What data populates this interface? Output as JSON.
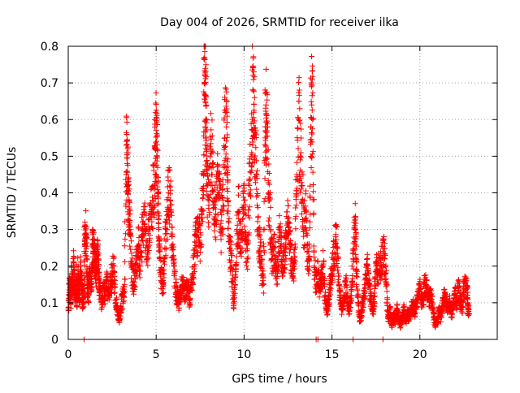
{
  "chart_data": {
    "type": "scatter",
    "title": "Day 004 of 2026, SRMTID for receiver ilka",
    "xlabel": "GPS time / hours",
    "ylabel": "SRMTID / TECUs",
    "xlim": [
      0,
      24.4
    ],
    "ylim": [
      0,
      0.8
    ],
    "xticks": [
      0,
      5,
      10,
      15,
      20
    ],
    "xtick_labels": [
      "0",
      "5",
      "10",
      "15",
      "20"
    ],
    "yticks": [
      0,
      0.1,
      0.2,
      0.3,
      0.4,
      0.5,
      0.6,
      0.7,
      0.8
    ],
    "ytick_labels": [
      "0",
      "0.1",
      "0.2",
      "0.3",
      "0.4",
      "0.5",
      "0.6",
      "0.7",
      "0.8"
    ],
    "grid": true,
    "marker": "+",
    "marker_color": "#ff0000",
    "series": [
      {
        "name": "SRMTID",
        "points": [
          [
            0.0,
            0.08
          ],
          [
            0.05,
            0.12
          ],
          [
            0.1,
            0.16
          ],
          [
            0.15,
            0.1
          ],
          [
            0.2,
            0.18
          ],
          [
            0.25,
            0.14
          ],
          [
            0.3,
            0.2
          ],
          [
            0.35,
            0.15
          ],
          [
            0.4,
            0.12
          ],
          [
            0.45,
            0.17
          ],
          [
            0.5,
            0.09
          ],
          [
            0.55,
            0.19
          ],
          [
            0.6,
            0.14
          ],
          [
            0.65,
            0.11
          ],
          [
            0.7,
            0.2
          ],
          [
            0.75,
            0.16
          ],
          [
            0.8,
            0.12
          ],
          [
            0.85,
            0.1
          ],
          [
            0.9,
            0.15
          ],
          [
            0.95,
            0.32
          ],
          [
            1.0,
            0.28
          ],
          [
            1.05,
            0.22
          ],
          [
            1.1,
            0.14
          ],
          [
            1.15,
            0.12
          ],
          [
            1.2,
            0.18
          ],
          [
            1.3,
            0.15
          ],
          [
            1.35,
            0.2
          ],
          [
            1.4,
            0.26
          ],
          [
            1.45,
            0.24
          ],
          [
            1.5,
            0.22
          ],
          [
            1.55,
            0.2
          ],
          [
            1.6,
            0.18
          ],
          [
            1.65,
            0.24
          ],
          [
            1.7,
            0.22
          ],
          [
            1.75,
            0.16
          ],
          [
            1.8,
            0.14
          ],
          [
            1.9,
            0.1
          ],
          [
            2.0,
            0.14
          ],
          [
            2.1,
            0.12
          ],
          [
            2.2,
            0.16
          ],
          [
            2.3,
            0.13
          ],
          [
            2.4,
            0.15
          ],
          [
            2.5,
            0.18
          ],
          [
            2.6,
            0.2
          ],
          [
            2.7,
            0.1
          ],
          [
            2.8,
            0.08
          ],
          [
            2.9,
            0.05
          ],
          [
            3.0,
            0.09
          ],
          [
            3.1,
            0.12
          ],
          [
            3.2,
            0.15
          ],
          [
            3.3,
            0.53
          ],
          [
            3.35,
            0.48
          ],
          [
            3.4,
            0.42
          ],
          [
            3.45,
            0.38
          ],
          [
            3.5,
            0.3
          ],
          [
            3.6,
            0.2
          ],
          [
            3.7,
            0.15
          ],
          [
            3.8,
            0.18
          ],
          [
            3.9,
            0.22
          ],
          [
            4.0,
            0.26
          ],
          [
            4.1,
            0.2
          ],
          [
            4.2,
            0.28
          ],
          [
            4.3,
            0.34
          ],
          [
            4.4,
            0.3
          ],
          [
            4.5,
            0.25
          ],
          [
            4.6,
            0.3
          ],
          [
            4.7,
            0.34
          ],
          [
            4.8,
            0.38
          ],
          [
            4.9,
            0.42
          ],
          [
            4.95,
            0.52
          ],
          [
            5.0,
            0.57
          ],
          [
            5.05,
            0.5
          ],
          [
            5.1,
            0.4
          ],
          [
            5.15,
            0.3
          ],
          [
            5.2,
            0.22
          ],
          [
            5.3,
            0.16
          ],
          [
            5.4,
            0.15
          ],
          [
            5.5,
            0.25
          ],
          [
            5.6,
            0.32
          ],
          [
            5.7,
            0.4
          ],
          [
            5.8,
            0.38
          ],
          [
            5.9,
            0.28
          ],
          [
            6.0,
            0.2
          ],
          [
            6.1,
            0.14
          ],
          [
            6.2,
            0.12
          ],
          [
            6.3,
            0.1
          ],
          [
            6.4,
            0.13
          ],
          [
            6.5,
            0.15
          ],
          [
            6.6,
            0.12
          ],
          [
            6.7,
            0.14
          ],
          [
            6.8,
            0.16
          ],
          [
            6.9,
            0.1
          ],
          [
            7.0,
            0.14
          ],
          [
            7.1,
            0.18
          ],
          [
            7.2,
            0.25
          ],
          [
            7.3,
            0.28
          ],
          [
            7.4,
            0.3
          ],
          [
            7.5,
            0.26
          ],
          [
            7.6,
            0.35
          ],
          [
            7.7,
            0.45
          ],
          [
            7.75,
            0.8
          ],
          [
            7.78,
            0.72
          ],
          [
            7.8,
            0.65
          ],
          [
            7.85,
            0.55
          ],
          [
            7.9,
            0.42
          ],
          [
            8.0,
            0.38
          ],
          [
            8.1,
            0.52
          ],
          [
            8.2,
            0.48
          ],
          [
            8.3,
            0.36
          ],
          [
            8.4,
            0.32
          ],
          [
            8.5,
            0.44
          ],
          [
            8.6,
            0.4
          ],
          [
            8.7,
            0.3
          ],
          [
            8.8,
            0.38
          ],
          [
            8.9,
            0.55
          ],
          [
            9.0,
            0.58
          ],
          [
            9.05,
            0.45
          ],
          [
            9.1,
            0.35
          ],
          [
            9.2,
            0.25
          ],
          [
            9.3,
            0.2
          ],
          [
            9.4,
            0.1
          ],
          [
            9.5,
            0.15
          ],
          [
            9.6,
            0.3
          ],
          [
            9.7,
            0.35
          ],
          [
            9.8,
            0.25
          ],
          [
            9.9,
            0.3
          ],
          [
            10.0,
            0.38
          ],
          [
            10.1,
            0.28
          ],
          [
            10.2,
            0.22
          ],
          [
            10.3,
            0.42
          ],
          [
            10.4,
            0.5
          ],
          [
            10.5,
            0.68
          ],
          [
            10.55,
            0.62
          ],
          [
            10.6,
            0.55
          ],
          [
            10.7,
            0.45
          ],
          [
            10.8,
            0.3
          ],
          [
            10.9,
            0.25
          ],
          [
            11.0,
            0.2
          ],
          [
            11.1,
            0.15
          ],
          [
            11.2,
            0.55
          ],
          [
            11.25,
            0.64
          ],
          [
            11.3,
            0.58
          ],
          [
            11.4,
            0.4
          ],
          [
            11.5,
            0.3
          ],
          [
            11.6,
            0.22
          ],
          [
            11.7,
            0.25
          ],
          [
            11.8,
            0.2
          ],
          [
            11.9,
            0.18
          ],
          [
            12.0,
            0.3
          ],
          [
            12.1,
            0.25
          ],
          [
            12.2,
            0.2
          ],
          [
            12.3,
            0.24
          ],
          [
            12.4,
            0.28
          ],
          [
            12.5,
            0.32
          ],
          [
            12.6,
            0.26
          ],
          [
            12.7,
            0.22
          ],
          [
            12.8,
            0.18
          ],
          [
            12.9,
            0.26
          ],
          [
            13.0,
            0.45
          ],
          [
            13.1,
            0.6
          ],
          [
            13.2,
            0.5
          ],
          [
            13.3,
            0.42
          ],
          [
            13.4,
            0.3
          ],
          [
            13.5,
            0.35
          ],
          [
            13.6,
            0.24
          ],
          [
            13.7,
            0.2
          ],
          [
            13.8,
            0.58
          ],
          [
            13.85,
            0.64
          ],
          [
            13.9,
            0.6
          ],
          [
            14.0,
            0.2
          ],
          [
            14.1,
            0.15
          ],
          [
            14.2,
            0.18
          ],
          [
            14.3,
            0.14
          ],
          [
            14.4,
            0.16
          ],
          [
            14.5,
            0.2
          ],
          [
            14.6,
            0.12
          ],
          [
            14.7,
            0.08
          ],
          [
            14.8,
            0.1
          ],
          [
            14.9,
            0.15
          ],
          [
            15.0,
            0.18
          ],
          [
            15.1,
            0.22
          ],
          [
            15.2,
            0.28
          ],
          [
            15.3,
            0.25
          ],
          [
            15.4,
            0.15
          ],
          [
            15.5,
            0.1
          ],
          [
            15.6,
            0.08
          ],
          [
            15.7,
            0.12
          ],
          [
            15.8,
            0.15
          ],
          [
            15.9,
            0.1
          ],
          [
            16.0,
            0.08
          ],
          [
            16.1,
            0.12
          ],
          [
            16.2,
            0.22
          ],
          [
            16.3,
            0.31
          ],
          [
            16.35,
            0.28
          ],
          [
            16.4,
            0.18
          ],
          [
            16.5,
            0.1
          ],
          [
            16.6,
            0.05
          ],
          [
            16.7,
            0.08
          ],
          [
            16.8,
            0.12
          ],
          [
            16.9,
            0.15
          ],
          [
            17.0,
            0.2
          ],
          [
            17.1,
            0.16
          ],
          [
            17.2,
            0.12
          ],
          [
            17.3,
            0.08
          ],
          [
            17.4,
            0.1
          ],
          [
            17.5,
            0.2
          ],
          [
            17.6,
            0.18
          ],
          [
            17.7,
            0.22
          ],
          [
            17.8,
            0.2
          ],
          [
            17.9,
            0.24
          ],
          [
            18.0,
            0.22
          ],
          [
            18.1,
            0.15
          ],
          [
            18.2,
            0.05
          ],
          [
            18.3,
            0.08
          ],
          [
            18.4,
            0.04
          ],
          [
            18.5,
            0.07
          ],
          [
            18.6,
            0.05
          ],
          [
            18.7,
            0.08
          ],
          [
            18.8,
            0.06
          ],
          [
            18.9,
            0.04
          ],
          [
            19.0,
            0.06
          ],
          [
            19.1,
            0.08
          ],
          [
            19.2,
            0.05
          ],
          [
            19.3,
            0.07
          ],
          [
            19.4,
            0.06
          ],
          [
            19.5,
            0.08
          ],
          [
            19.6,
            0.09
          ],
          [
            19.7,
            0.07
          ],
          [
            19.8,
            0.1
          ],
          [
            19.9,
            0.12
          ],
          [
            20.0,
            0.14
          ],
          [
            20.1,
            0.1
          ],
          [
            20.2,
            0.12
          ],
          [
            20.3,
            0.15
          ],
          [
            20.4,
            0.13
          ],
          [
            20.5,
            0.11
          ],
          [
            20.6,
            0.12
          ],
          [
            20.7,
            0.1
          ],
          [
            20.8,
            0.06
          ],
          [
            20.9,
            0.04
          ],
          [
            21.0,
            0.05
          ],
          [
            21.1,
            0.08
          ],
          [
            21.2,
            0.06
          ],
          [
            21.3,
            0.09
          ],
          [
            21.4,
            0.12
          ],
          [
            21.5,
            0.1
          ],
          [
            21.6,
            0.08
          ],
          [
            21.7,
            0.1
          ],
          [
            21.8,
            0.07
          ],
          [
            21.9,
            0.09
          ],
          [
            22.0,
            0.12
          ],
          [
            22.1,
            0.1
          ],
          [
            22.2,
            0.14
          ],
          [
            22.3,
            0.11
          ],
          [
            22.4,
            0.09
          ],
          [
            22.5,
            0.13
          ],
          [
            22.6,
            0.16
          ],
          [
            22.7,
            0.12
          ],
          [
            22.75,
            0.08
          ]
        ]
      }
    ],
    "zero_points_x": [
      0.9,
      14.1,
      14.2,
      16.2,
      17.9
    ]
  }
}
